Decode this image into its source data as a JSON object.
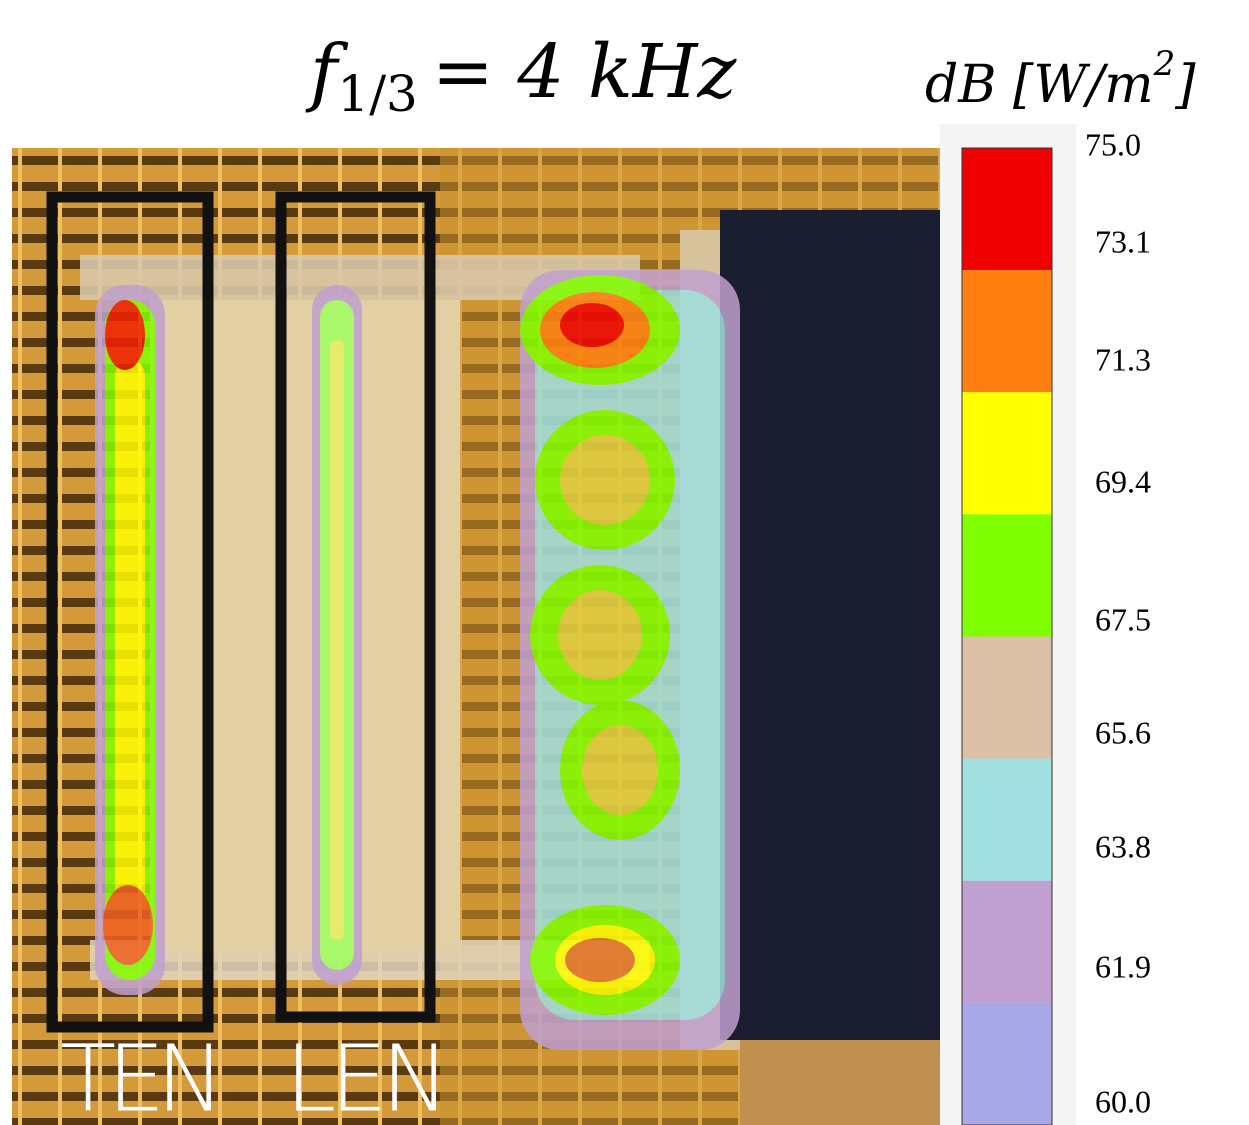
{
  "title": {
    "symbol": "f",
    "subscript": "1/3",
    "rest": "= 4 kHz"
  },
  "colorbar": {
    "label": {
      "text": "dB [W/m",
      "superscript": "2",
      "close": "]"
    },
    "ticks": [
      "75.0",
      "73.1",
      "71.3",
      "69.4",
      "67.5",
      "65.6",
      "63.8",
      "61.9",
      "60.0"
    ],
    "colors": [
      "#f00000",
      "#ff8010",
      "#ffff00",
      "#80ff00",
      "#dcc0a8",
      "#a0e0e0",
      "#c0a0d0",
      "#a8a8e8"
    ]
  },
  "labels": [
    "TEN",
    "LEN"
  ]
}
